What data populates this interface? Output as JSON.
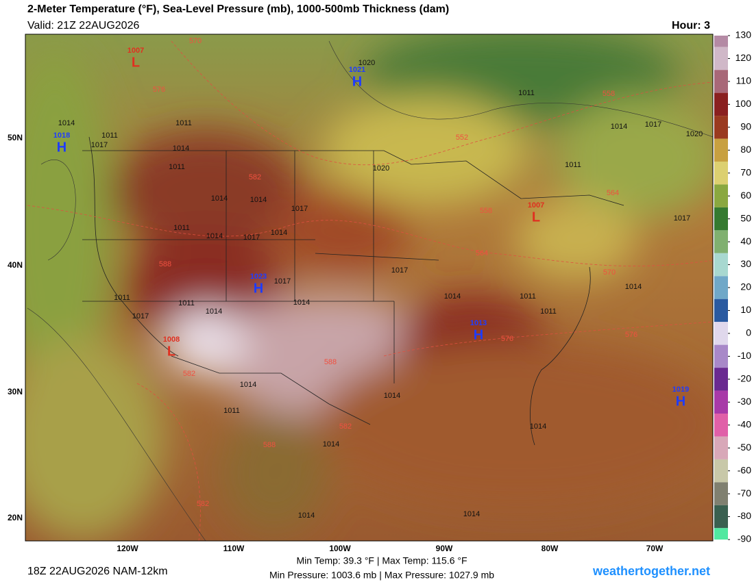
{
  "header": {
    "title": "2-Meter Temperature (°F), Sea-Level Pressure (mb), 1000-500mb Thickness (dam)",
    "valid": "Valid: 21Z 22AUG2026",
    "hour": "Hour: 3"
  },
  "colorbar": {
    "ticks": [
      130,
      120,
      110,
      100,
      90,
      80,
      70,
      60,
      50,
      40,
      30,
      20,
      10,
      0,
      -10,
      -20,
      -30,
      -40,
      -50,
      -60,
      -70,
      -80,
      -90
    ]
  },
  "map": {
    "lat_labels": [
      "50N",
      "40N",
      "30N",
      "20N"
    ],
    "lon_labels": [
      "120W",
      "110W",
      "100W",
      "90W",
      "80W",
      "70W"
    ],
    "pressure_centers": [
      {
        "letter": "H",
        "value": 1018
      },
      {
        "letter": "L",
        "value": 1007
      },
      {
        "letter": "H",
        "value": 1021
      },
      {
        "letter": "H",
        "value": 1023
      },
      {
        "letter": "L",
        "value": 1008
      },
      {
        "letter": "H",
        "value": 1013
      },
      {
        "letter": "L",
        "value": 1007
      },
      {
        "letter": "H",
        "value": 1019
      }
    ],
    "isobar_labels": [
      1020,
      1011,
      1014,
      1011,
      1017,
      1011,
      1014,
      1011,
      1014,
      1014,
      1017,
      1011,
      1014,
      1017,
      1014,
      1017,
      1014,
      1011,
      1014,
      1011,
      1017,
      1020,
      1011,
      1014,
      1017,
      1020,
      1017,
      1017,
      1014,
      1011,
      1011,
      1014,
      1014,
      1011,
      1014,
      1014,
      1014,
      1014,
      1014
    ],
    "thickness_labels": [
      570,
      576,
      582,
      588,
      588,
      582,
      582,
      588,
      582,
      552,
      558,
      558,
      564,
      564,
      570,
      576,
      576
    ]
  },
  "footer": {
    "run": "18Z 22AUG2026 NAM-12km",
    "temp_range": "Min Temp:  39.3 °F | Max Temp: 115.6 °F",
    "pressure_range": "Min Pressure: 1003.6 mb | Max Pressure: 1027.9 mb",
    "site": "weathertogether.net"
  }
}
